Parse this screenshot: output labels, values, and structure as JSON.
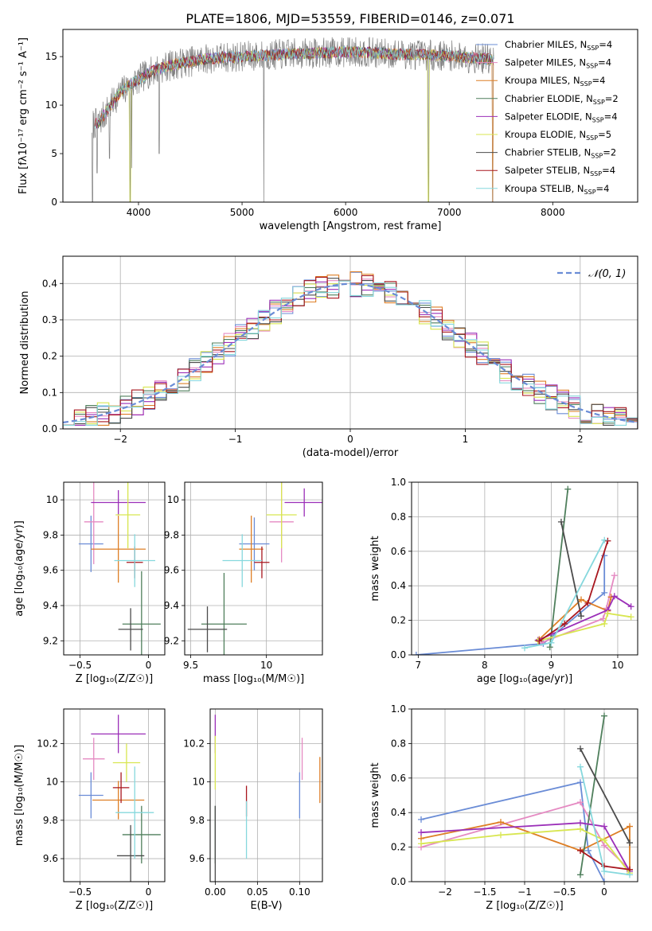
{
  "figure_title": "PLATE=1806, MJD=53559, FIBERID=0146, z=0.071",
  "models": [
    {
      "name": "Chabrier MILES, N",
      "sub": "SSP",
      "suffix": "=4",
      "color": "#6a8cd6"
    },
    {
      "name": "Salpeter MILES, N",
      "sub": "SSP",
      "suffix": "=4",
      "color": "#e58ac2"
    },
    {
      "name": "Kroupa MILES, N",
      "sub": "SSP",
      "suffix": "=4",
      "color": "#de7f26"
    },
    {
      "name": "Chabrier ELODIE, N",
      "sub": "SSP",
      "suffix": "=2",
      "color": "#4f7f5c"
    },
    {
      "name": "Salpeter ELODIE, N",
      "sub": "SSP",
      "suffix": "=4",
      "color": "#9b2fb8"
    },
    {
      "name": "Kroupa ELODIE, N",
      "sub": "SSP",
      "suffix": "=5",
      "color": "#d8e650"
    },
    {
      "name": "Chabrier STELIB, N",
      "sub": "SSP",
      "suffix": "=2",
      "color": "#4b4b4b"
    },
    {
      "name": "Salpeter STELIB, N",
      "sub": "SSP",
      "suffix": "=4",
      "color": "#a8161e"
    },
    {
      "name": "Kroupa STELIB, N",
      "sub": "SSP",
      "suffix": "=4",
      "color": "#86d8dd"
    }
  ],
  "chart_data": [
    {
      "id": "spectrum",
      "type": "line",
      "xlabel": "wavelength [Angstrom, rest frame]",
      "ylabel": "Flux [fλ10⁻¹⁷ erg cm⁻² s⁻¹ A⁻¹]",
      "xlim": [
        3270,
        8820
      ],
      "ylim": [
        0,
        17.8
      ],
      "xticks": [
        4000,
        5000,
        6000,
        7000,
        8000
      ],
      "yticks": [
        0,
        5,
        10,
        15
      ],
      "data_color": "#808080",
      "continuum": [
        [
          3550,
          8.0
        ],
        [
          3620,
          8.2
        ],
        [
          3700,
          9.5
        ],
        [
          3800,
          11.0
        ],
        [
          3900,
          12.0
        ],
        [
          4000,
          12.6
        ],
        [
          4100,
          13.3
        ],
        [
          4200,
          13.8
        ],
        [
          4400,
          14.3
        ],
        [
          4600,
          14.7
        ],
        [
          4800,
          14.9
        ],
        [
          5000,
          15.0
        ],
        [
          5200,
          15.1
        ],
        [
          5500,
          15.3
        ],
        [
          5800,
          15.4
        ],
        [
          6100,
          15.5
        ],
        [
          6400,
          15.3
        ],
        [
          6700,
          15.2
        ],
        [
          7000,
          15.1
        ],
        [
          7300,
          14.8
        ],
        [
          7430,
          14.7
        ]
      ],
      "spikes": [
        [
          3556,
          0
        ],
        [
          3600,
          3
        ],
        [
          3720,
          4.5
        ],
        [
          3920,
          0
        ],
        [
          3935,
          3.5
        ],
        [
          4200,
          5.0
        ],
        [
          5210,
          0
        ],
        [
          6800,
          0
        ],
        [
          7420,
          0
        ]
      ],
      "legend_position": "right"
    },
    {
      "id": "residuals",
      "type": "histogram",
      "xlabel": "(data-model)/error",
      "ylabel": "Normed distribution",
      "xlim": [
        -2.5,
        2.5
      ],
      "ylim": [
        0,
        0.475
      ],
      "xticks": [
        -2,
        -1,
        0,
        1,
        2
      ],
      "yticks": [
        0.0,
        0.1,
        0.2,
        0.3,
        0.4
      ],
      "bin_width": 0.1,
      "bin_start": -2.5,
      "reference_label": "𝒩(0, 1)",
      "reference_color": "#6a8cd6",
      "grid": true,
      "legend_position": "top-right"
    },
    {
      "id": "age-vs-Z",
      "type": "scatter",
      "xlabel": "Z [log₁₀(Z/Z☉)]",
      "ylabel": "age  [log₁₀(age/yr)]",
      "xlim": [
        -0.62,
        0.12
      ],
      "ylim": [
        9.12,
        10.1
      ],
      "xticks": [
        -0.5,
        0.0
      ],
      "yticks": [
        9.2,
        9.4,
        9.6,
        9.8,
        10.0
      ],
      "grid": true,
      "points": [
        {
          "x": -0.42,
          "xerr": 0.09,
          "y": 9.75,
          "yerr": 0.16,
          "model": 0
        },
        {
          "x": -0.4,
          "xerr": 0.07,
          "y": 9.875,
          "yerr": 0.24,
          "model": 1
        },
        {
          "x": -0.22,
          "xerr": 0.2,
          "y": 9.72,
          "yerr": 0.19,
          "model": 2
        },
        {
          "x": -0.05,
          "xerr": 0.14,
          "y": 9.295,
          "yerr": 0.3,
          "model": 3
        },
        {
          "x": -0.22,
          "xerr": 0.2,
          "y": 9.985,
          "yerr": 0.07,
          "model": 4
        },
        {
          "x": -0.15,
          "xerr": 0.09,
          "y": 9.915,
          "yerr": 0.19,
          "model": 5
        },
        {
          "x": -0.13,
          "xerr": 0.09,
          "y": 9.265,
          "yerr": 0.12,
          "model": 6
        },
        {
          "x": -0.1,
          "xerr": 0.06,
          "y": 9.645,
          "yerr": 0.09,
          "model": 7
        },
        {
          "x": -0.1,
          "xerr": 0.15,
          "y": 9.655,
          "yerr": 0.15,
          "model": 8
        }
      ]
    },
    {
      "id": "age-vs-mass",
      "type": "scatter",
      "xlabel": "mass [log₁₀(M/M☉)]",
      "ylabel": "",
      "xlim": [
        9.46,
        10.37
      ],
      "ylim": [
        9.12,
        10.1
      ],
      "xticks": [
        9.5,
        10.0
      ],
      "yticks": [
        9.2,
        9.4,
        9.6,
        9.8,
        10.0
      ],
      "grid": true,
      "points": [
        {
          "x": 9.92,
          "xerr": 0.1,
          "y": 9.75,
          "yerr": 0.15,
          "model": 0
        },
        {
          "x": 10.1,
          "xerr": 0.08,
          "y": 9.875,
          "yerr": 0.23,
          "model": 1
        },
        {
          "x": 9.9,
          "xerr": 0.08,
          "y": 9.72,
          "yerr": 0.19,
          "model": 2
        },
        {
          "x": 9.72,
          "xerr": 0.15,
          "y": 9.295,
          "yerr": 0.29,
          "model": 3
        },
        {
          "x": 10.25,
          "xerr": 0.13,
          "y": 9.985,
          "yerr": 0.08,
          "model": 4
        },
        {
          "x": 10.1,
          "xerr": 0.1,
          "y": 9.915,
          "yerr": 0.19,
          "model": 5
        },
        {
          "x": 9.61,
          "xerr": 0.13,
          "y": 9.265,
          "yerr": 0.13,
          "model": 6
        },
        {
          "x": 9.97,
          "xerr": 0.05,
          "y": 9.645,
          "yerr": 0.09,
          "model": 7
        },
        {
          "x": 9.84,
          "xerr": 0.13,
          "y": 9.655,
          "yerr": 0.15,
          "model": 8
        }
      ]
    },
    {
      "id": "weight-vs-age",
      "type": "line",
      "xlabel": "age  [log₁₀(age/yr)]",
      "ylabel": "mass weight",
      "xlim": [
        6.9,
        10.3
      ],
      "ylim": [
        0,
        1.0
      ],
      "xticks": [
        7,
        8,
        9,
        10
      ],
      "yticks": [
        0.0,
        0.2,
        0.4,
        0.6,
        0.8,
        1.0
      ],
      "grid": true,
      "series": [
        {
          "model": 0,
          "points": [
            [
              6.97,
              0.0
            ],
            [
              8.88,
              0.065
            ],
            [
              9.8,
              0.36
            ],
            [
              9.8,
              0.575
            ]
          ]
        },
        {
          "model": 1,
          "points": [
            [
              8.85,
              0.07
            ],
            [
              9.78,
              0.21
            ],
            [
              9.83,
              0.27
            ],
            [
              9.95,
              0.46
            ]
          ]
        },
        {
          "model": 2,
          "points": [
            [
              8.82,
              0.09
            ],
            [
              9.45,
              0.32
            ],
            [
              9.85,
              0.255
            ],
            [
              9.9,
              0.335
            ]
          ]
        },
        {
          "model": 3,
          "points": [
            [
              8.98,
              0.045
            ],
            [
              9.25,
              0.96
            ]
          ]
        },
        {
          "model": 4,
          "points": [
            [
              8.8,
              0.085
            ],
            [
              9.85,
              0.26
            ],
            [
              9.95,
              0.34
            ],
            [
              10.2,
              0.28
            ]
          ]
        },
        {
          "model": 5,
          "points": [
            [
              8.8,
              0.08
            ],
            [
              9.8,
              0.18
            ],
            [
              9.85,
              0.24
            ],
            [
              10.2,
              0.22
            ]
          ]
        },
        {
          "model": 6,
          "points": [
            [
              9.15,
              0.77
            ],
            [
              9.45,
              0.225
            ]
          ]
        },
        {
          "model": 7,
          "points": [
            [
              8.82,
              0.08
            ],
            [
              9.2,
              0.18
            ],
            [
              9.55,
              0.3
            ],
            [
              9.85,
              0.66
            ]
          ]
        },
        {
          "model": 8,
          "points": [
            [
              8.6,
              0.04
            ],
            [
              9.0,
              0.07
            ],
            [
              9.8,
              0.665
            ]
          ]
        }
      ]
    },
    {
      "id": "mass-vs-Z",
      "type": "scatter",
      "xlabel": "Z [log₁₀(Z/Z☉)]",
      "ylabel": "mass [log₁₀(M/M☉)]",
      "xlim": [
        -0.62,
        0.12
      ],
      "ylim": [
        9.48,
        10.38
      ],
      "xticks": [
        -0.5,
        0.0
      ],
      "yticks": [
        9.6,
        9.8,
        10.0,
        10.2
      ],
      "grid": true,
      "points": [
        {
          "x": -0.42,
          "xerr": 0.09,
          "y": 9.93,
          "yerr": 0.12,
          "model": 0
        },
        {
          "x": -0.4,
          "xerr": 0.08,
          "y": 10.12,
          "yerr": 0.11,
          "model": 1
        },
        {
          "x": -0.22,
          "xerr": 0.19,
          "y": 9.905,
          "yerr": 0.1,
          "model": 2
        },
        {
          "x": -0.05,
          "xerr": 0.14,
          "y": 9.725,
          "yerr": 0.15,
          "model": 3
        },
        {
          "x": -0.22,
          "xerr": 0.2,
          "y": 10.25,
          "yerr": 0.1,
          "model": 4
        },
        {
          "x": -0.16,
          "xerr": 0.1,
          "y": 10.1,
          "yerr": 0.1,
          "model": 5
        },
        {
          "x": -0.13,
          "xerr": 0.1,
          "y": 9.615,
          "yerr": 0.16,
          "model": 6
        },
        {
          "x": -0.2,
          "xerr": 0.06,
          "y": 9.97,
          "yerr": 0.08,
          "model": 7
        },
        {
          "x": -0.1,
          "xerr": 0.14,
          "y": 9.84,
          "yerr": 0.24,
          "model": 8
        }
      ]
    },
    {
      "id": "mass-vs-EBV",
      "type": "scatter",
      "xlabel": "E(B-V)",
      "ylabel": "",
      "xlim": [
        -0.006,
        0.127
      ],
      "ylim": [
        9.48,
        10.38
      ],
      "xticks": [
        0.0,
        0.05,
        0.1
      ],
      "xtick_labels": [
        "0.00",
        "0.05",
        "0.10"
      ],
      "yticks": [
        9.6,
        9.8,
        10.0,
        10.2
      ],
      "grid": true,
      "points": [
        {
          "x": 0.1,
          "y": 9.93,
          "yerr": 0.12,
          "model": 0
        },
        {
          "x": 0.103,
          "y": 10.12,
          "yerr": 0.11,
          "model": 1
        },
        {
          "x": 0.124,
          "y": 10.01,
          "yerr": 0.12,
          "model": 2
        },
        {
          "x": 0.0,
          "y": 9.725,
          "yerr": 0.15,
          "model": 3
        },
        {
          "x": 0.0,
          "y": 10.25,
          "yerr": 0.1,
          "model": 4
        },
        {
          "x": 0.0,
          "y": 10.1,
          "yerr": 0.14,
          "model": 5
        },
        {
          "x": 0.0,
          "y": 9.615,
          "yerr": 0.26,
          "model": 6
        },
        {
          "x": 0.037,
          "y": 9.9,
          "yerr": 0.08,
          "model": 7
        },
        {
          "x": 0.037,
          "y": 9.75,
          "yerr": 0.15,
          "model": 8
        }
      ]
    },
    {
      "id": "weight-vs-Z",
      "type": "line",
      "xlabel": "Z [log₁₀(Z/Z☉)]",
      "ylabel": "mass weight",
      "xlim": [
        -2.42,
        0.42
      ],
      "ylim": [
        0,
        1.0
      ],
      "xticks": [
        -2.0,
        -1.5,
        -1.0,
        -0.5,
        0.0
      ],
      "yticks": [
        0.0,
        0.2,
        0.4,
        0.6,
        0.8,
        1.0
      ],
      "grid": true,
      "series": [
        {
          "model": 0,
          "points": [
            [
              -2.3,
              0.36
            ],
            [
              -0.3,
              0.575
            ],
            [
              -0.2,
              0.18
            ],
            [
              0.0,
              0.0
            ]
          ]
        },
        {
          "model": 1,
          "points": [
            [
              -2.3,
              0.2
            ],
            [
              -0.3,
              0.46
            ],
            [
              0.0,
              0.21
            ],
            [
              0.32,
              0.07
            ]
          ]
        },
        {
          "model": 2,
          "points": [
            [
              -2.3,
              0.25
            ],
            [
              -1.3,
              0.345
            ],
            [
              -0.3,
              0.18
            ],
            [
              0.32,
              0.32
            ],
            [
              0.32,
              0.07
            ]
          ]
        },
        {
          "model": 3,
          "points": [
            [
              -0.3,
              0.04
            ],
            [
              0.0,
              0.96
            ]
          ]
        },
        {
          "model": 4,
          "points": [
            [
              -2.3,
              0.285
            ],
            [
              -0.3,
              0.34
            ],
            [
              0.0,
              0.32
            ],
            [
              0.32,
              0.06
            ]
          ]
        },
        {
          "model": 5,
          "points": [
            [
              -2.3,
              0.22
            ],
            [
              -1.3,
              0.27
            ],
            [
              -0.3,
              0.305
            ],
            [
              0.0,
              0.24
            ],
            [
              0.32,
              0.05
            ]
          ]
        },
        {
          "model": 6,
          "points": [
            [
              -0.3,
              0.77
            ],
            [
              0.32,
              0.225
            ]
          ]
        },
        {
          "model": 7,
          "points": [
            [
              -0.3,
              0.18
            ],
            [
              0.0,
              0.09
            ],
            [
              0.32,
              0.07
            ]
          ]
        },
        {
          "model": 8,
          "points": [
            [
              -0.3,
              0.665
            ],
            [
              0.0,
              0.06
            ],
            [
              0.32,
              0.04
            ]
          ]
        }
      ]
    }
  ]
}
